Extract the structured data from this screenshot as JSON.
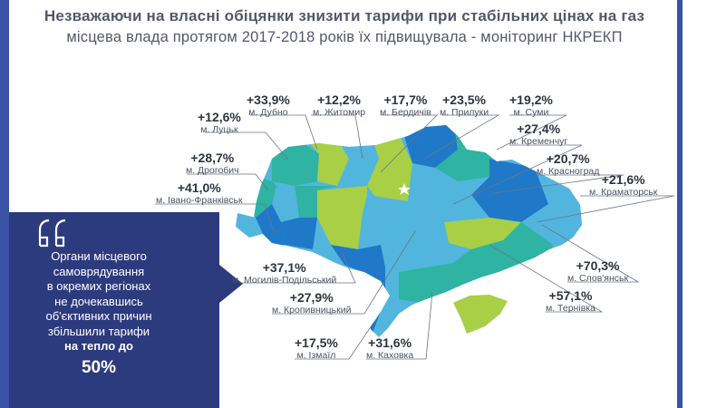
{
  "header": {
    "title_line1": "Незважаючи на власні обіцянки знизити тарифи при стабільних цінах на газ",
    "title_line2": "місцева влада протягом 2017-2018 років їх підвищувала - моніторинг НКРЕКП"
  },
  "quote": {
    "lines": [
      "Органи місцевого",
      "самоврядування",
      "в окремих регіонах",
      "не дочекавшись",
      "об'єктивних причин",
      "збільшили тарифи"
    ],
    "bold_line": "на тепло до",
    "big_value": "50%"
  },
  "cities": [
    {
      "pct": "+12,6%",
      "name": "м. Луцьк"
    },
    {
      "pct": "+33,9%",
      "name": "м. Дубно"
    },
    {
      "pct": "+12,2%",
      "name": "м. Житомир"
    },
    {
      "pct": "+17,7%",
      "name": "м. Бердичів"
    },
    {
      "pct": "+23,5%",
      "name": "м. Прилуки"
    },
    {
      "pct": "+19,2%",
      "name": "м. Суми"
    },
    {
      "pct": "+27,4%",
      "name": "м. Кременчуг"
    },
    {
      "pct": "+28,7%",
      "name": "м. Дрогобич"
    },
    {
      "pct": "+20,7%",
      "name": "м. Красноград"
    },
    {
      "pct": "+41,0%",
      "name": "м. Івано-Франківськ"
    },
    {
      "pct": "+21,6%",
      "name": "м. Краматорськ"
    },
    {
      "pct": "+37,1%",
      "name": "м. Могилів-Подільський"
    },
    {
      "pct": "+70,3%",
      "name": "м. Слов'янськ"
    },
    {
      "pct": "+27,9%",
      "name": "м. Кропивницький"
    },
    {
      "pct": "+57,1%",
      "name": "м. Тернівка"
    },
    {
      "pct": "+17,5%",
      "name": "м. Ізмаїл"
    },
    {
      "pct": "+31,6%",
      "name": "м. Каховка"
    }
  ],
  "colors": {
    "frame_blue": "#3a52a3",
    "quote_panel": "#2c3a7e",
    "region_dark_blue": "#1f78c8",
    "region_light_blue": "#52b5de",
    "region_teal": "#2fb3a2",
    "region_lime": "#a8cf45",
    "capital_star": "#ffffff"
  }
}
